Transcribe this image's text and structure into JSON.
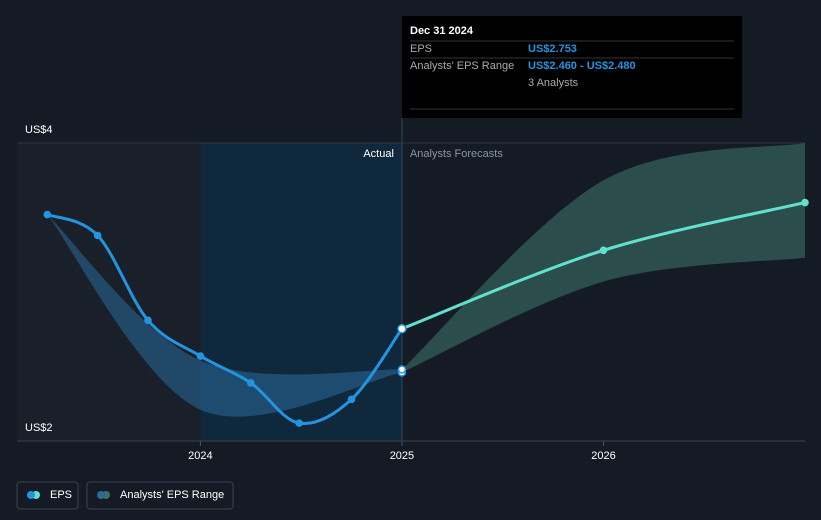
{
  "chart_data": {
    "type": "line",
    "xlim": [
      2023.09,
      2027.0
    ],
    "xticks": [
      2024,
      2025,
      2026
    ],
    "ylim": [
      2,
      4
    ],
    "yticks": [
      {
        "value": 4,
        "label": "US$4"
      },
      {
        "value": 2,
        "label": "US$2"
      }
    ],
    "actual_end": 2025.0,
    "actual_label": "Actual",
    "forecast_label": "Analysts Forecasts",
    "series": [
      {
        "name": "EPS",
        "color": "#2394df",
        "forecast_color": "#62e0cf",
        "x": [
          2023.24,
          2023.49,
          2023.74,
          2024.0,
          2024.25,
          2024.49,
          2024.75,
          2025.0,
          2026.0,
          2027.0
        ],
        "values": [
          3.52,
          3.38,
          2.81,
          2.57,
          2.39,
          2.12,
          2.28,
          2.753,
          3.28,
          3.6
        ]
      },
      {
        "name": "Analysts' EPS Range",
        "color": "#2a6a9c",
        "forecast_color": "#3b6f68",
        "x": [
          2023.24,
          2024.0,
          2025.0,
          2026.0,
          2027.0
        ],
        "low": [
          3.52,
          2.21,
          2.46,
          3.07,
          3.23
        ],
        "high": [
          3.52,
          2.54,
          2.48,
          3.75,
          4.0
        ]
      }
    ],
    "tooltip": {
      "date": "Dec 31 2024",
      "eps_label": "EPS",
      "eps_value": "US$2.753",
      "range_label": "Analysts' EPS Range",
      "range_value": "US$2.460 - US$2.480",
      "analysts": "3 Analysts"
    }
  }
}
